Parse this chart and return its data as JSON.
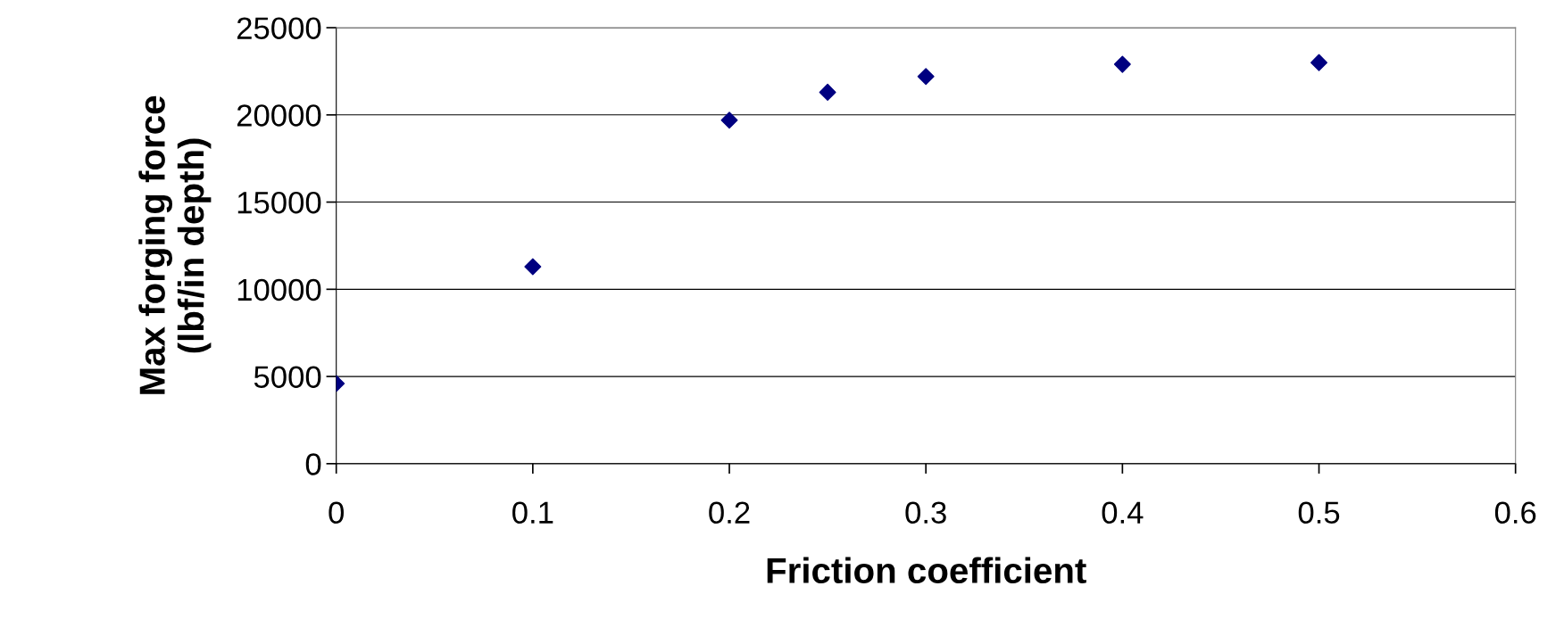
{
  "chart_data": {
    "type": "scatter",
    "xlabel": "Friction coefficient",
    "ylabel": "Max forging force\n(lbf/in depth)",
    "x": [
      0,
      0.1,
      0.2,
      0.25,
      0.3,
      0.4,
      0.5
    ],
    "series": [
      {
        "color": "#000080",
        "values": [
          4600,
          11300,
          19700,
          21300,
          22200,
          22900,
          23000
        ]
      }
    ],
    "xlim": [
      0,
      0.6
    ],
    "xticks": [
      0,
      0.1,
      0.2,
      0.3,
      0.4,
      0.5,
      0.6
    ],
    "ylim": [
      0,
      25000
    ],
    "yticks": [
      0,
      5000,
      10000,
      15000,
      20000,
      25000
    ],
    "grid": "y",
    "marker": "diamond",
    "legend": false
  }
}
